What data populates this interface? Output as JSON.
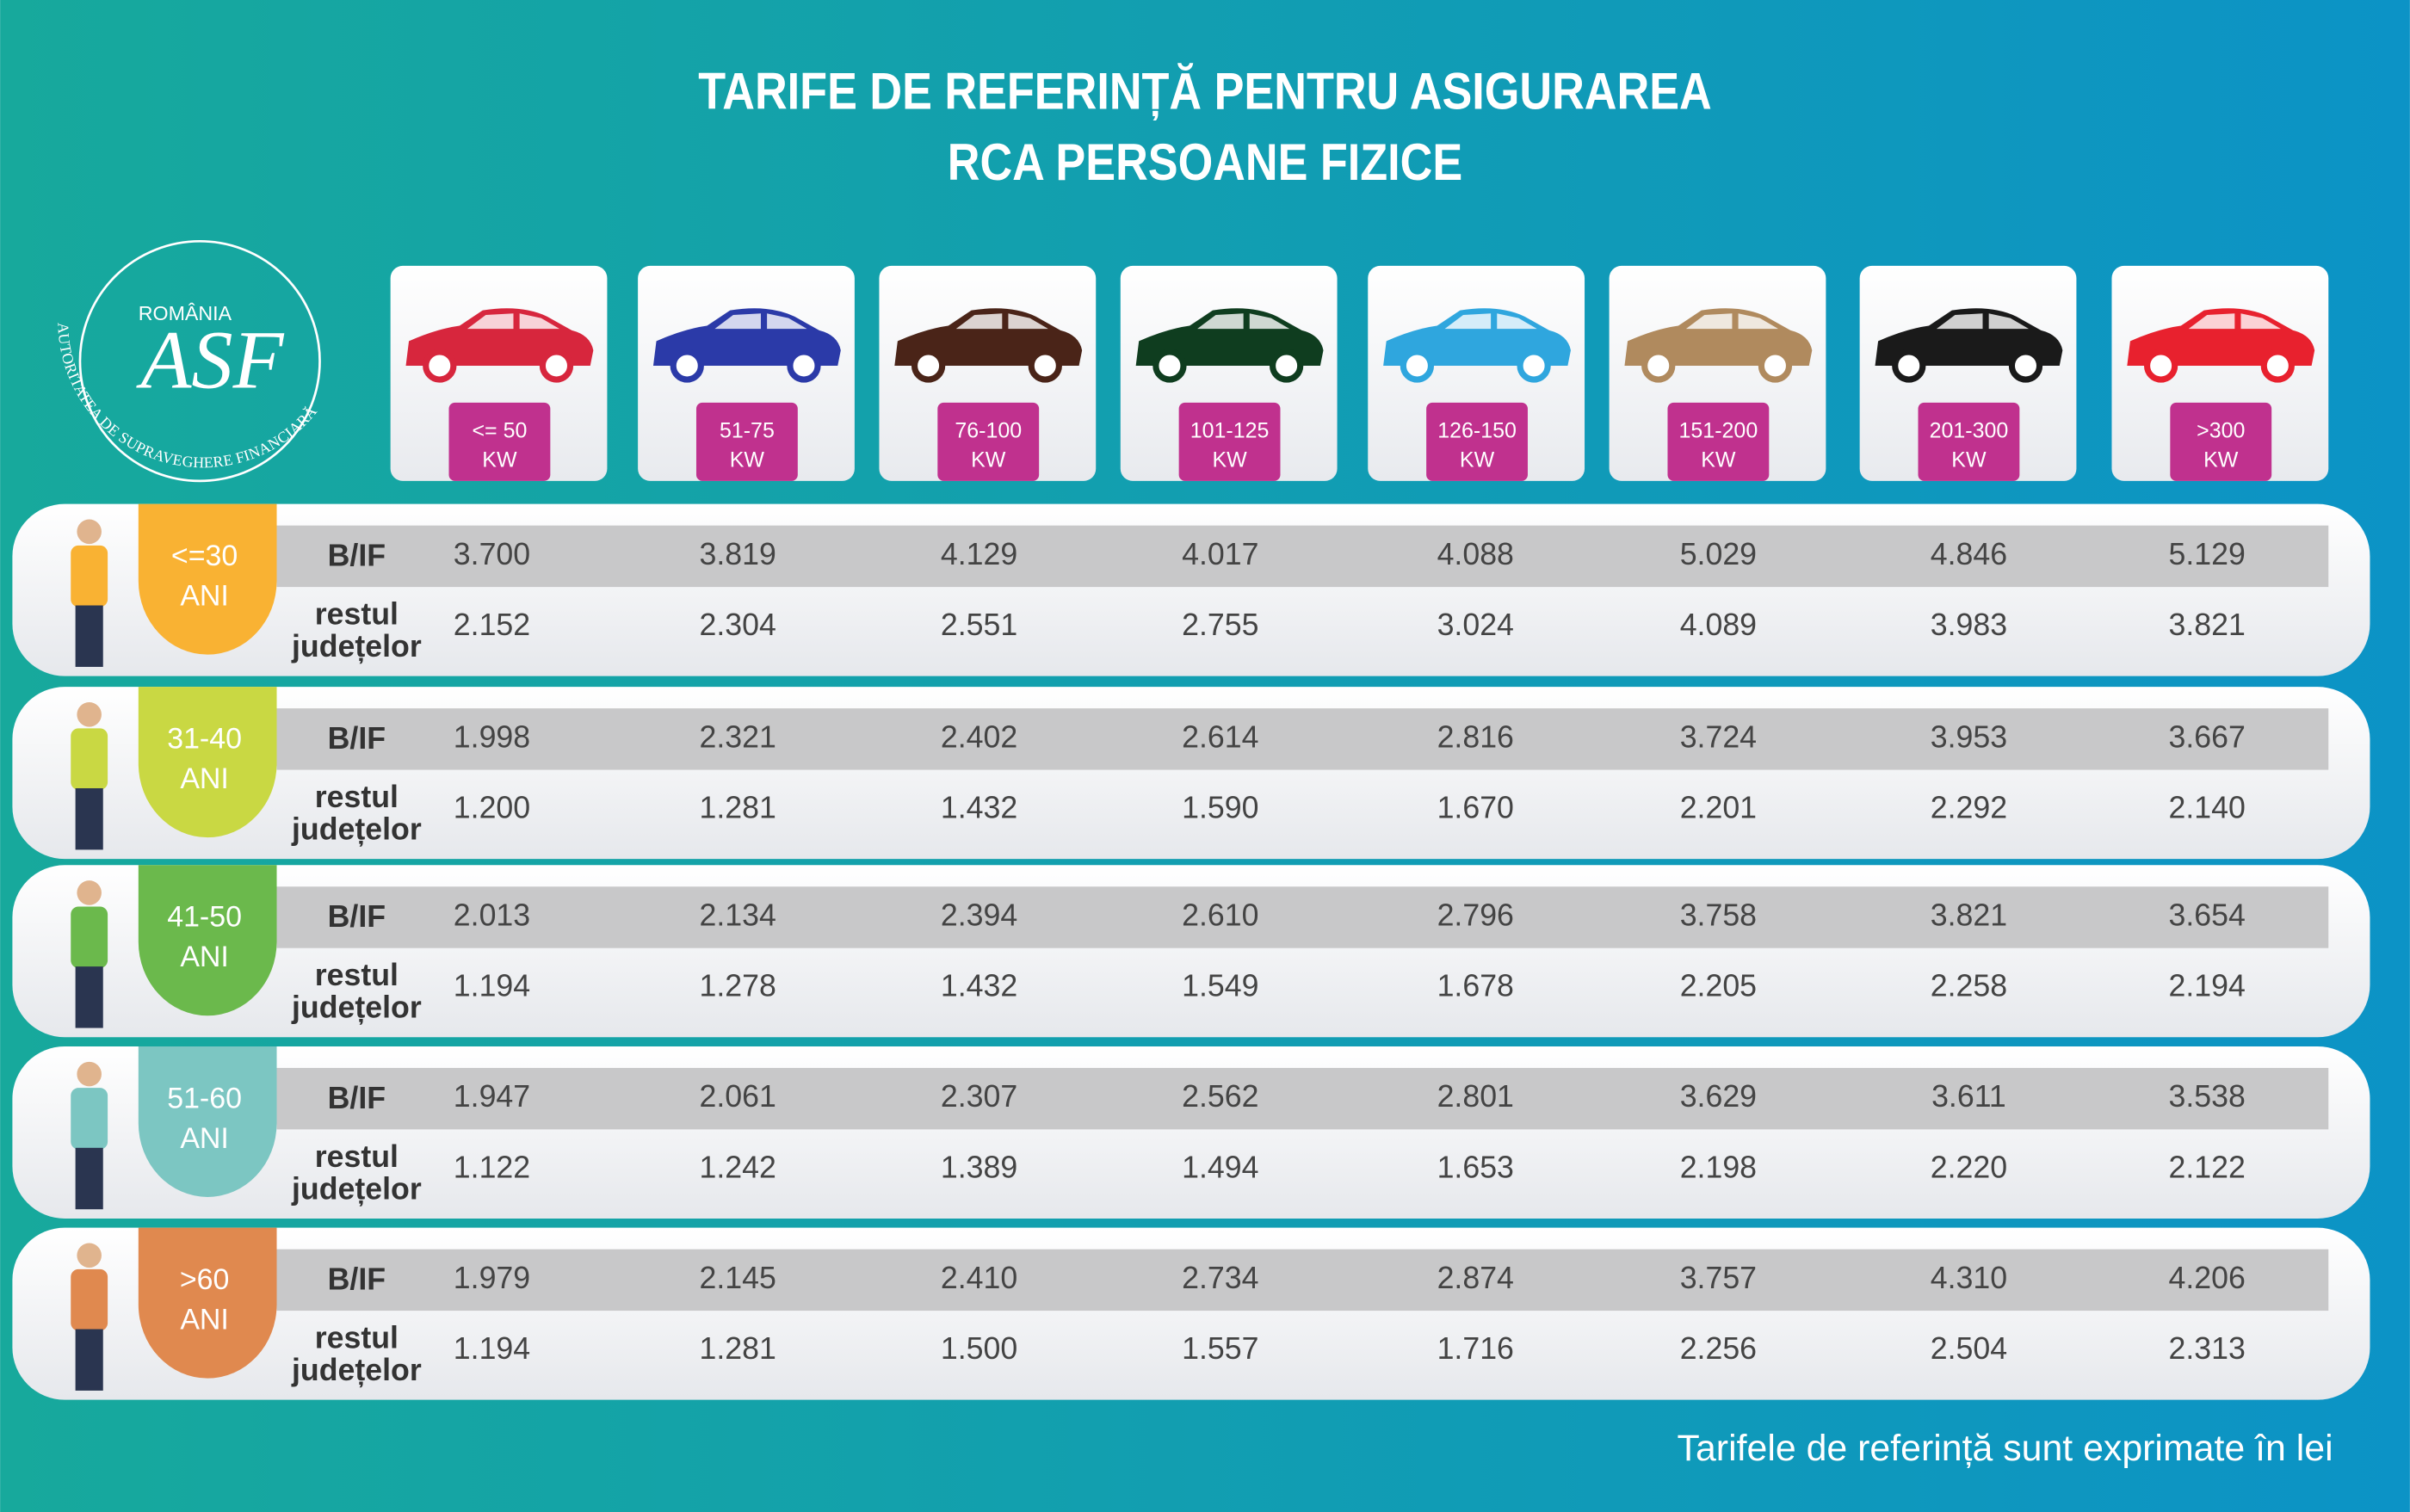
{
  "header": {
    "title": [
      "TARIFE DE REFERINȚĂ PENTRU ASIGURAREA",
      "RCA PERSOANE FIZICE"
    ]
  },
  "logo": {
    "country": "ROMÂNIA",
    "authority": "AUTORITATEA DE SUPRAVEGHERE FINANCIARĂ",
    "initials": "ASF"
  },
  "columns": [
    {
      "label": [
        "<= 50",
        "KW"
      ],
      "color": "#d7263d"
    },
    {
      "label": [
        "51-75",
        "KW"
      ],
      "color": "#2b3aa8"
    },
    {
      "label": [
        "76-100",
        "KW"
      ],
      "color": "#4a2418"
    },
    {
      "label": [
        "101-125",
        "KW"
      ],
      "color": "#0f3d1f"
    },
    {
      "label": [
        "126-150",
        "KW"
      ],
      "color": "#2fa6de"
    },
    {
      "label": [
        "151-200",
        "KW"
      ],
      "color": "#b08a5e"
    },
    {
      "label": [
        "201-300",
        "KW"
      ],
      "color": "#1a1a1a"
    },
    {
      "label": [
        ">300",
        "KW"
      ],
      "color": "#e8212e"
    }
  ],
  "rows": [
    {
      "age": [
        "<=30",
        "ANI"
      ],
      "color": "#f9b233",
      "bif_label": "B/IF",
      "rest_label": [
        "restul",
        "județelor"
      ],
      "bif": [
        "3.700",
        "3.819",
        "4.129",
        "4.017",
        "4.088",
        "5.029",
        "4.846",
        "5.129"
      ],
      "rest": [
        "2.152",
        "2.304",
        "2.551",
        "2.755",
        "3.024",
        "4.089",
        "3.983",
        "3.821"
      ]
    },
    {
      "age": [
        "31-40",
        "ANI"
      ],
      "color": "#c9d843",
      "bif_label": "B/IF",
      "rest_label": [
        "restul",
        "județelor"
      ],
      "bif": [
        "1.998",
        "2.321",
        "2.402",
        "2.614",
        "2.816",
        "3.724",
        "3.953",
        "3.667"
      ],
      "rest": [
        "1.200",
        "1.281",
        "1.432",
        "1.590",
        "1.670",
        "2.201",
        "2.292",
        "2.140"
      ]
    },
    {
      "age": [
        "41-50",
        "ANI"
      ],
      "color": "#6bb94c",
      "bif_label": "B/IF",
      "rest_label": [
        "restul",
        "județelor"
      ],
      "bif": [
        "2.013",
        "2.134",
        "2.394",
        "2.610",
        "2.796",
        "3.758",
        "3.821",
        "3.654"
      ],
      "rest": [
        "1.194",
        "1.278",
        "1.432",
        "1.549",
        "1.678",
        "2.205",
        "2.258",
        "2.194"
      ]
    },
    {
      "age": [
        "51-60",
        "ANI"
      ],
      "color": "#7cc6c2",
      "bif_label": "B/IF",
      "rest_label": [
        "restul",
        "județelor"
      ],
      "bif": [
        "1.947",
        "2.061",
        "2.307",
        "2.562",
        "2.801",
        "3.629",
        "3.611",
        "3.538"
      ],
      "rest": [
        "1.122",
        "1.242",
        "1.389",
        "1.494",
        "1.653",
        "2.198",
        "2.220",
        "2.122"
      ]
    },
    {
      "age": [
        ">60",
        "ANI"
      ],
      "color": "#e0894f",
      "bif_label": "B/IF",
      "rest_label": [
        "restul",
        "județelor"
      ],
      "bif": [
        "1.979",
        "2.145",
        "2.410",
        "2.734",
        "2.874",
        "3.757",
        "4.310",
        "4.206"
      ],
      "rest": [
        "1.194",
        "1.281",
        "1.500",
        "1.557",
        "1.716",
        "2.256",
        "2.504",
        "2.313"
      ]
    }
  ],
  "footer": {
    "note": "Tarifele de referință sunt exprimate în lei"
  }
}
